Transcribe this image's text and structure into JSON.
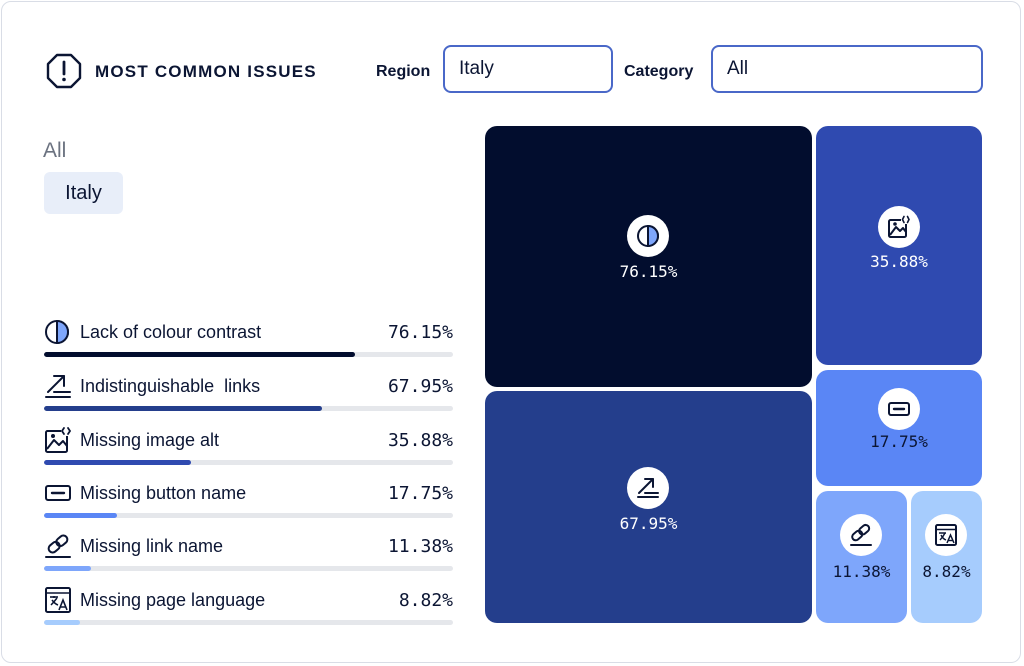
{
  "header": {
    "title": "MOST COMMON ISSUES",
    "icon": "alert-octagon-icon"
  },
  "filters": {
    "region": {
      "label": "Region",
      "value": "Italy"
    },
    "category": {
      "label": "Category",
      "value": "All"
    }
  },
  "breadcrumb": {
    "root": "All",
    "current": "Italy"
  },
  "colors": {
    "c1": "#020d2e",
    "c2": "#243e8c",
    "c3": "#2f4ab0",
    "c4": "#5a86f5",
    "c5": "#7ea6fb",
    "c6": "#a6ccfd",
    "track": "#e5e7eb"
  },
  "chart_data": {
    "type": "treemap",
    "items": [
      {
        "name": "Lack of colour contrast",
        "value": 76.15,
        "label": "76.15%",
        "icon": "contrast-icon",
        "color": "#020d2e"
      },
      {
        "name": "Indistinguishable  links",
        "value": 67.95,
        "label": "67.95%",
        "icon": "link-arrow-icon",
        "color": "#243e8c"
      },
      {
        "name": "Missing image alt",
        "value": 35.88,
        "label": "35.88%",
        "icon": "image-code-icon",
        "color": "#2f4ab0"
      },
      {
        "name": "Missing button name",
        "value": 17.75,
        "label": "17.75%",
        "icon": "button-icon",
        "color": "#5a86f5"
      },
      {
        "name": "Missing link name",
        "value": 11.38,
        "label": "11.38%",
        "icon": "chain-link-icon",
        "color": "#7ea6fb"
      },
      {
        "name": "Missing page language",
        "value": 8.82,
        "label": "8.82%",
        "icon": "translate-icon",
        "color": "#a6ccfd"
      }
    ]
  }
}
